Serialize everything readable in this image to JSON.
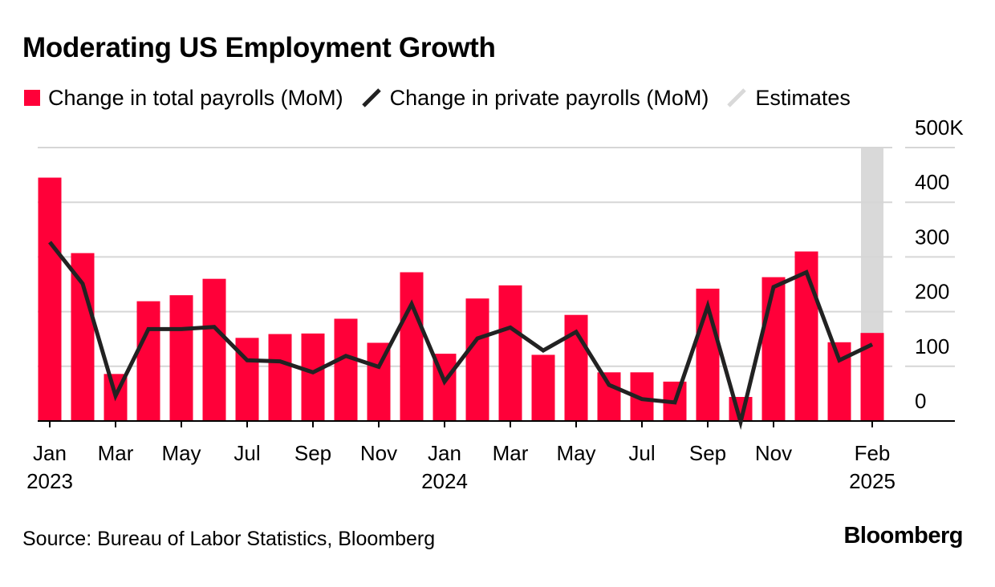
{
  "title": "Moderating US Employment Growth",
  "legend": {
    "bars": "Change in total payrolls (MoM)",
    "line": "Change in private payrolls (MoM)",
    "estimates": "Estimates"
  },
  "footer": {
    "source": "Source: Bureau of Labor Statistics, Bloomberg",
    "brand": "Bloomberg"
  },
  "colors": {
    "bars": "#ff0039",
    "line": "#222222",
    "estimates": "#d9d9d9",
    "grid": "#d6d6d6",
    "axis": "#000000"
  },
  "chart_data": {
    "type": "bar",
    "title": "Moderating US Employment Growth",
    "xlabel": "",
    "ylabel": "",
    "ylim": [
      0,
      500
    ],
    "yticks": [
      0,
      100,
      200,
      300,
      400,
      500
    ],
    "ytick_labels": [
      "0",
      "100",
      "200",
      "300",
      "400",
      "500K"
    ],
    "grid": true,
    "legend_position": "top-left",
    "categories": [
      "Jan 2023",
      "Feb 2023",
      "Mar 2023",
      "Apr 2023",
      "May 2023",
      "Jun 2023",
      "Jul 2023",
      "Aug 2023",
      "Sep 2023",
      "Oct 2023",
      "Nov 2023",
      "Dec 2023",
      "Jan 2024",
      "Feb 2024",
      "Mar 2024",
      "Apr 2024",
      "May 2024",
      "Jun 2024",
      "Jul 2024",
      "Aug 2024",
      "Sep 2024",
      "Oct 2024",
      "Nov 2024",
      "Dec 2024",
      "Jan 2025",
      "Feb 2025"
    ],
    "x_ticks": [
      {
        "index": 0,
        "label": "Jan",
        "year": "2023"
      },
      {
        "index": 2,
        "label": "Mar",
        "year": ""
      },
      {
        "index": 4,
        "label": "May",
        "year": ""
      },
      {
        "index": 6,
        "label": "Jul",
        "year": ""
      },
      {
        "index": 8,
        "label": "Sep",
        "year": ""
      },
      {
        "index": 10,
        "label": "Nov",
        "year": ""
      },
      {
        "index": 12,
        "label": "Jan",
        "year": "2024"
      },
      {
        "index": 14,
        "label": "Mar",
        "year": ""
      },
      {
        "index": 16,
        "label": "May",
        "year": ""
      },
      {
        "index": 18,
        "label": "Jul",
        "year": ""
      },
      {
        "index": 20,
        "label": "Sep",
        "year": ""
      },
      {
        "index": 22,
        "label": "Nov",
        "year": ""
      },
      {
        "index": 25,
        "label": "Feb",
        "year": "2025"
      }
    ],
    "estimates_index": 25,
    "series": [
      {
        "name": "Change in total payrolls (MoM)",
        "kind": "bar",
        "values": [
          445,
          307,
          86,
          219,
          230,
          260,
          152,
          159,
          160,
          187,
          143,
          272,
          123,
          224,
          248,
          121,
          194,
          89,
          89,
          72,
          242,
          44,
          263,
          310,
          144,
          161
        ]
      },
      {
        "name": "Change in private payrolls (MoM)",
        "kind": "line",
        "values": [
          327,
          251,
          46,
          168,
          168,
          172,
          111,
          109,
          89,
          119,
          99,
          214,
          72,
          151,
          171,
          129,
          163,
          66,
          40,
          34,
          210,
          -2,
          245,
          272,
          111,
          140
        ]
      }
    ]
  }
}
